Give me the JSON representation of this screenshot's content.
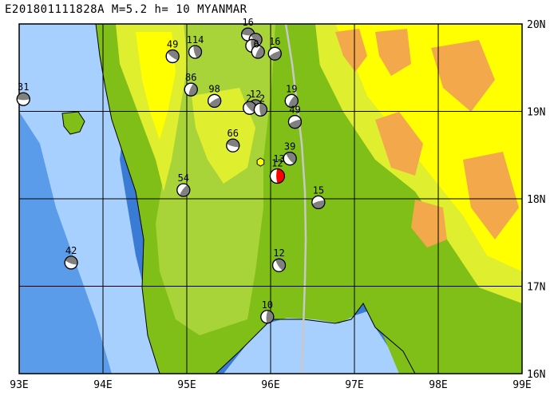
{
  "title": "E201801111828A  M=5.2  h= 10  MYANMAR",
  "colors": {
    "ocean_deep": "#3a7bd5",
    "ocean_mid": "#5a9bea",
    "ocean_shallow": "#a8d0ff",
    "lowland": "#7fbf17",
    "plain": "#a8d43a",
    "hill": "#e0ee30",
    "highland": "#ffff00",
    "mountain": "#f4a84c",
    "grid": "#000000",
    "fault": "#c8c8c8",
    "main_event": "#ff0000"
  },
  "map": {
    "lon_range": [
      93,
      99
    ],
    "lat_range": [
      16,
      20
    ],
    "x_ticks": [
      "93E",
      "94E",
      "95E",
      "96E",
      "97E",
      "98E",
      "99E"
    ],
    "y_ticks": [
      "20N",
      "19N",
      "18N",
      "17N",
      "16N"
    ]
  },
  "events": [
    {
      "label": "31",
      "lon": 93.05,
      "lat": 19.14,
      "main": false
    },
    {
      "label": "49",
      "lon": 94.83,
      "lat": 19.63,
      "main": false
    },
    {
      "label": "114",
      "lon": 95.1,
      "lat": 19.68,
      "main": false
    },
    {
      "label": "86",
      "lon": 95.05,
      "lat": 19.25,
      "main": false
    },
    {
      "label": "98",
      "lon": 95.33,
      "lat": 19.12,
      "main": false
    },
    {
      "label": "16",
      "lon": 95.73,
      "lat": 19.88,
      "main": false
    },
    {
      "label": "",
      "lon": 95.82,
      "lat": 19.82,
      "main": false
    },
    {
      "label": "",
      "lon": 95.78,
      "lat": 19.75,
      "main": false
    },
    {
      "label": "",
      "lon": 95.85,
      "lat": 19.68,
      "main": false
    },
    {
      "label": "16",
      "lon": 96.05,
      "lat": 19.66,
      "main": false
    },
    {
      "label": "12",
      "lon": 95.82,
      "lat": 19.06,
      "main": false
    },
    {
      "label": "",
      "lon": 95.75,
      "lat": 19.04,
      "main": false
    },
    {
      "label": "",
      "lon": 95.88,
      "lat": 19.02,
      "main": false
    },
    {
      "label": "19",
      "lon": 96.25,
      "lat": 19.12,
      "main": false
    },
    {
      "label": "49",
      "lon": 96.29,
      "lat": 18.88,
      "main": false
    },
    {
      "label": "66",
      "lon": 95.55,
      "lat": 18.61,
      "main": false
    },
    {
      "label": "39",
      "lon": 96.23,
      "lat": 18.46,
      "main": false
    },
    {
      "label": "12",
      "lon": 96.08,
      "lat": 18.26,
      "main": true
    },
    {
      "label": "54",
      "lon": 94.96,
      "lat": 18.1,
      "main": false
    },
    {
      "label": "15",
      "lon": 96.57,
      "lat": 17.96,
      "main": false
    },
    {
      "label": "42",
      "lon": 93.62,
      "lat": 17.27,
      "main": false
    },
    {
      "label": "12",
      "lon": 96.1,
      "lat": 17.24,
      "main": false
    },
    {
      "label": "10",
      "lon": 95.96,
      "lat": 16.65,
      "main": false
    }
  ],
  "station": {
    "lon": 95.88,
    "lat": 18.42
  },
  "legend_text": [
    {
      "text": "13",
      "lon": 96.1,
      "lat": 18.42
    },
    {
      "text": "2",
      "lon": 95.74,
      "lat": 19.11
    },
    {
      "text": "2",
      "lon": 95.9,
      "lat": 19.11
    },
    {
      "text": "6",
      "lon": 95.83,
      "lat": 19.73
    }
  ]
}
